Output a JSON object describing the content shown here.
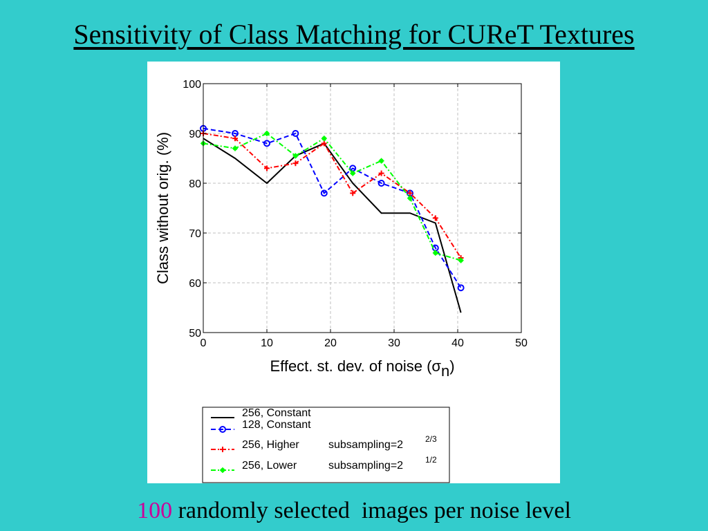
{
  "slide": {
    "title": "Sensitivity of Class Matching for CUReT Textures",
    "footer_count": "100",
    "footer_text": " randomly selected  images per noise level"
  },
  "colors": {
    "background": "#33cccc",
    "footer_count": "#cc0099"
  },
  "chart_data": {
    "type": "line",
    "xlabel": "Effect. st. dev. of noise (σ",
    "xlabel_subscript": "n",
    "xlabel_close": ")",
    "ylabel": "Class without orig. (%)",
    "xlim": [
      0,
      50
    ],
    "ylim": [
      50,
      100
    ],
    "xticks": [
      "0",
      "10",
      "20",
      "30",
      "40",
      "50"
    ],
    "yticks": [
      "50",
      "60",
      "70",
      "80",
      "90",
      "100"
    ],
    "grid": true,
    "legend_position": "below",
    "series": [
      {
        "name": "256, Constant",
        "color": "#000000",
        "dash": "solid",
        "marker": "none",
        "x": [
          0,
          5,
          10,
          14.5,
          19,
          23.5,
          28,
          32.5,
          36.5,
          40.5
        ],
        "y": [
          89,
          85,
          80,
          85.5,
          88,
          80,
          74,
          74,
          72,
          54
        ]
      },
      {
        "name": "128, Constant",
        "color": "#0000ff",
        "dash": "dashed",
        "marker": "circle",
        "x": [
          0,
          5,
          10,
          14.5,
          19,
          23.5,
          28,
          32.5,
          36.5,
          40.5
        ],
        "y": [
          91,
          90,
          88,
          90,
          78,
          83,
          80,
          78,
          67,
          59
        ]
      },
      {
        "name": "256, Higher",
        "suffix": "subsampling=2",
        "exponent": "2/3",
        "color": "#ff0000",
        "dash": "dotdash",
        "marker": "plus",
        "x": [
          0,
          5,
          10,
          14.5,
          19,
          23.5,
          28,
          32.5,
          36.5,
          40.5
        ],
        "y": [
          90,
          89,
          83,
          84,
          88,
          78,
          82,
          78,
          73,
          65
        ]
      },
      {
        "name": "256, Lower",
        "suffix": "subsampling=2",
        "exponent": "1/2",
        "color": "#00ff00",
        "dash": "dotdash",
        "marker": "star",
        "x": [
          0,
          5,
          10,
          14.5,
          19,
          23.5,
          28,
          32.5,
          36.5,
          40.5
        ],
        "y": [
          88,
          87,
          90,
          85.5,
          89,
          82,
          84.5,
          77,
          66,
          64.5
        ]
      }
    ]
  }
}
